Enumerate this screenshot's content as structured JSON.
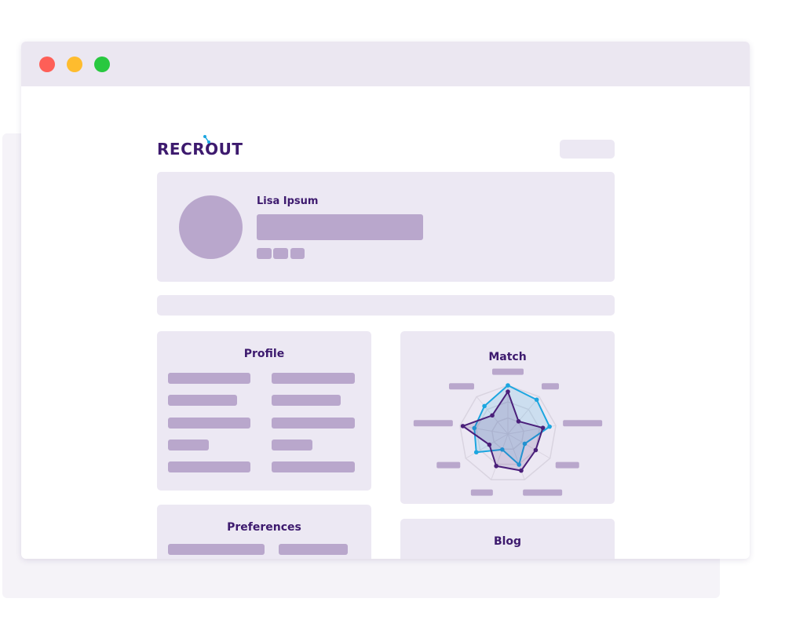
{
  "window": {
    "controls": [
      "close",
      "minimize",
      "maximize"
    ],
    "colors": {
      "close": "#fe5f57",
      "minimize": "#febc2e",
      "maximize": "#28c840"
    }
  },
  "brand": {
    "logo": "RECROUT",
    "color": "#3d1a6e",
    "accent": "#1ca6e0"
  },
  "profile_header": {
    "name": "Lisa Ipsum"
  },
  "sections": {
    "profile": "Profile",
    "match": "Match",
    "preferences": "Preferences",
    "blog": "Blog"
  },
  "chart_data": {
    "type": "radar",
    "axes_count": 9,
    "range": [
      0,
      1
    ],
    "grid": true,
    "series": [
      {
        "color": "#1ca6e0",
        "values": [
          1.0,
          0.92,
          0.87,
          0.4,
          0.67,
          0.34,
          0.75,
          0.7,
          0.75
        ]
      },
      {
        "color": "#4a1f7a",
        "values": [
          0.87,
          0.34,
          0.73,
          0.66,
          0.8,
          0.7,
          0.44,
          0.94,
          0.5
        ]
      }
    ]
  }
}
